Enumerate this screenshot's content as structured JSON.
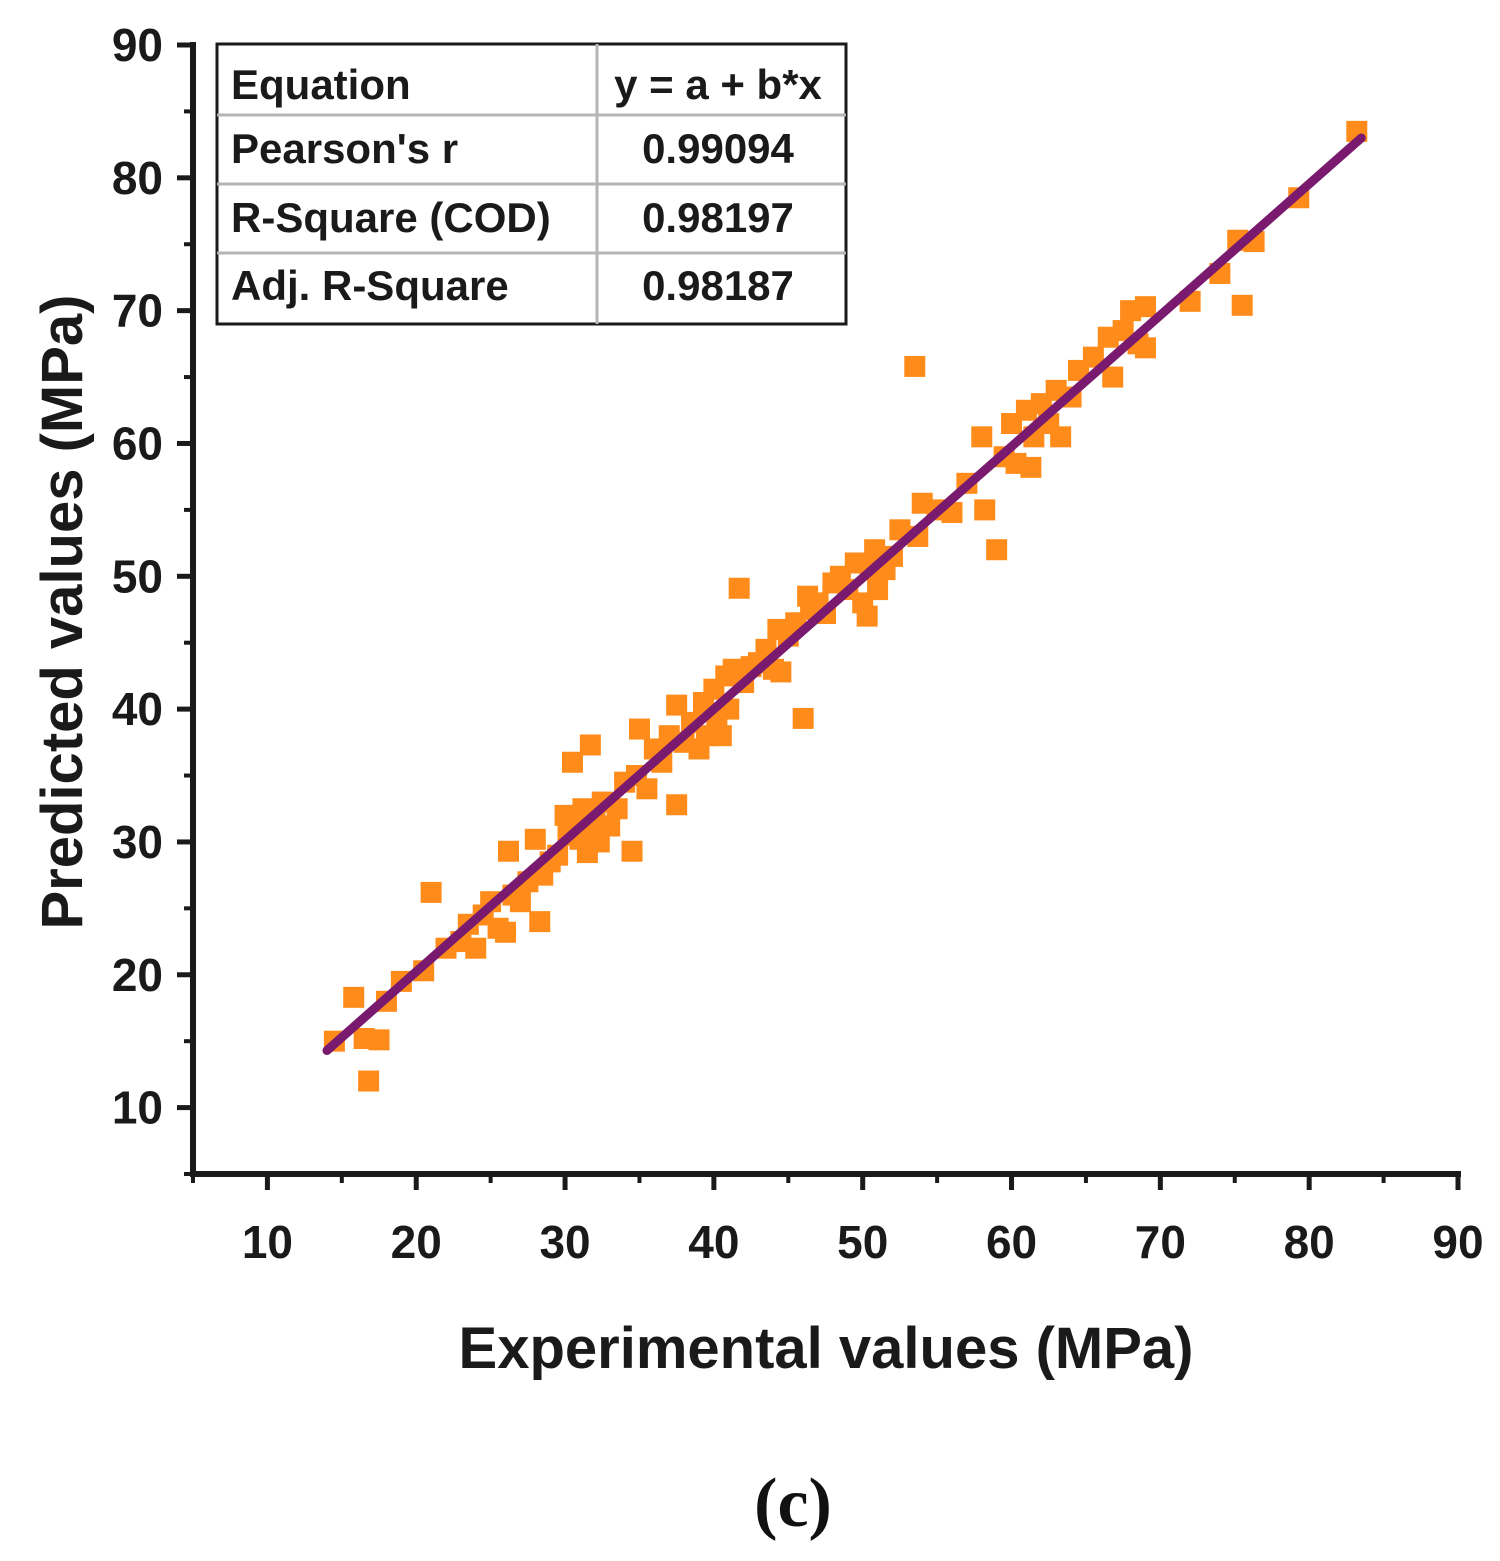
{
  "panel_label": "(c)",
  "colors": {
    "points": "#ff8c1a",
    "fit_line": "#7a1a6e",
    "axis": "#1a1a1a"
  },
  "stats_table": {
    "rows": [
      {
        "label": "Equation",
        "value": "y = a + b*x"
      },
      {
        "label": "Pearson's r",
        "value": "0.99094"
      },
      {
        "label": "R-Square (COD)",
        "value": "0.98197"
      },
      {
        "label": "Adj. R-Square",
        "value": "0.98187"
      }
    ]
  },
  "chart_data": {
    "type": "scatter",
    "title": "",
    "xlabel": "Experimental values (MPa)",
    "ylabel": "Predicted values (MPa)",
    "xlim": [
      5,
      90
    ],
    "ylim": [
      5,
      90
    ],
    "xticks": [
      10,
      20,
      30,
      40,
      50,
      60,
      70,
      80,
      90
    ],
    "yticks": [
      10,
      20,
      30,
      40,
      50,
      60,
      70,
      80,
      90
    ],
    "x_tick_labels": [
      "10",
      "20",
      "30",
      "40",
      "50",
      "60",
      "70",
      "80",
      "90"
    ],
    "y_tick_labels": [
      "10",
      "20",
      "30",
      "40",
      "50",
      "60",
      "70",
      "80",
      "90"
    ],
    "fit_line": {
      "x": [
        14,
        83.5
      ],
      "y": [
        14.3,
        83.0
      ]
    },
    "series": [
      {
        "name": "Data",
        "points": [
          [
            14.5,
            15.0
          ],
          [
            15.8,
            18.3
          ],
          [
            16.5,
            15.2
          ],
          [
            16.8,
            12.0
          ],
          [
            17.5,
            15.1
          ],
          [
            18.0,
            18.0
          ],
          [
            19.0,
            19.5
          ],
          [
            20.5,
            20.3
          ],
          [
            21.0,
            26.2
          ],
          [
            22.0,
            22.0
          ],
          [
            23.0,
            22.5
          ],
          [
            23.5,
            23.8
          ],
          [
            24.0,
            22.0
          ],
          [
            24.5,
            24.5
          ],
          [
            25.0,
            25.5
          ],
          [
            25.5,
            23.5
          ],
          [
            26.0,
            23.2
          ],
          [
            26.2,
            29.3
          ],
          [
            26.5,
            26.0
          ],
          [
            27.0,
            25.5
          ],
          [
            27.5,
            27.0
          ],
          [
            28.0,
            30.2
          ],
          [
            28.3,
            24.0
          ],
          [
            28.5,
            27.5
          ],
          [
            29.0,
            28.5
          ],
          [
            29.5,
            29.0
          ],
          [
            30.0,
            32.0
          ],
          [
            30.2,
            30.5
          ],
          [
            30.5,
            36.0
          ],
          [
            30.8,
            31.0
          ],
          [
            31.0,
            30.2
          ],
          [
            31.2,
            32.5
          ],
          [
            31.5,
            29.2
          ],
          [
            31.7,
            37.3
          ],
          [
            32.0,
            31.5
          ],
          [
            32.3,
            30.0
          ],
          [
            32.5,
            33.0
          ],
          [
            33.0,
            31.2
          ],
          [
            33.5,
            32.5
          ],
          [
            34.0,
            34.5
          ],
          [
            34.5,
            29.3
          ],
          [
            34.8,
            35.0
          ],
          [
            35.0,
            38.5
          ],
          [
            35.5,
            34.0
          ],
          [
            36.0,
            37.0
          ],
          [
            36.5,
            36.0
          ],
          [
            37.0,
            38.0
          ],
          [
            37.5,
            32.8
          ],
          [
            37.5,
            40.3
          ],
          [
            38.0,
            37.5
          ],
          [
            38.5,
            39.0
          ],
          [
            39.0,
            37.0
          ],
          [
            39.3,
            40.5
          ],
          [
            39.5,
            38.0
          ],
          [
            40.0,
            41.5
          ],
          [
            40.2,
            39.5
          ],
          [
            40.5,
            38.0
          ],
          [
            40.8,
            42.5
          ],
          [
            41.0,
            40.0
          ],
          [
            41.3,
            43.0
          ],
          [
            41.7,
            49.1
          ],
          [
            42.0,
            42.0
          ],
          [
            42.5,
            43.2
          ],
          [
            43.0,
            43.5
          ],
          [
            43.5,
            44.5
          ],
          [
            44.0,
            43.0
          ],
          [
            44.3,
            46.0
          ],
          [
            44.5,
            42.8
          ],
          [
            45.0,
            45.5
          ],
          [
            45.5,
            46.5
          ],
          [
            46.0,
            39.3
          ],
          [
            46.3,
            48.5
          ],
          [
            46.5,
            47.5
          ],
          [
            47.0,
            48.0
          ],
          [
            47.5,
            47.2
          ],
          [
            48.0,
            49.5
          ],
          [
            48.5,
            50.0
          ],
          [
            49.0,
            49.0
          ],
          [
            49.5,
            51.0
          ],
          [
            50.0,
            48.0
          ],
          [
            50.3,
            47.0
          ],
          [
            50.5,
            50.5
          ],
          [
            50.8,
            52.0
          ],
          [
            51.0,
            49.0
          ],
          [
            51.5,
            50.5
          ],
          [
            52.0,
            51.5
          ],
          [
            52.5,
            53.5
          ],
          [
            53.5,
            65.8
          ],
          [
            53.7,
            53.0
          ],
          [
            54.0,
            55.5
          ],
          [
            55.0,
            55.0
          ],
          [
            56.0,
            54.8
          ],
          [
            57.0,
            57.0
          ],
          [
            58.0,
            60.5
          ],
          [
            58.2,
            55.0
          ],
          [
            59.0,
            52.0
          ],
          [
            59.5,
            59.0
          ],
          [
            60.0,
            61.5
          ],
          [
            60.3,
            58.5
          ],
          [
            61.0,
            62.5
          ],
          [
            61.3,
            58.2
          ],
          [
            61.5,
            60.5
          ],
          [
            62.0,
            63.0
          ],
          [
            62.5,
            61.5
          ],
          [
            63.0,
            64.0
          ],
          [
            63.3,
            60.5
          ],
          [
            64.0,
            63.5
          ],
          [
            64.5,
            65.5
          ],
          [
            65.5,
            66.5
          ],
          [
            66.5,
            68.0
          ],
          [
            66.8,
            65.0
          ],
          [
            67.5,
            68.5
          ],
          [
            68.0,
            70.0
          ],
          [
            68.5,
            67.5
          ],
          [
            69.0,
            70.3
          ],
          [
            69.0,
            67.2
          ],
          [
            72.0,
            70.7
          ],
          [
            74.0,
            72.8
          ],
          [
            75.2,
            75.3
          ],
          [
            75.5,
            70.4
          ],
          [
            76.3,
            75.2
          ],
          [
            79.3,
            78.5
          ],
          [
            83.2,
            83.5
          ]
        ]
      }
    ]
  }
}
